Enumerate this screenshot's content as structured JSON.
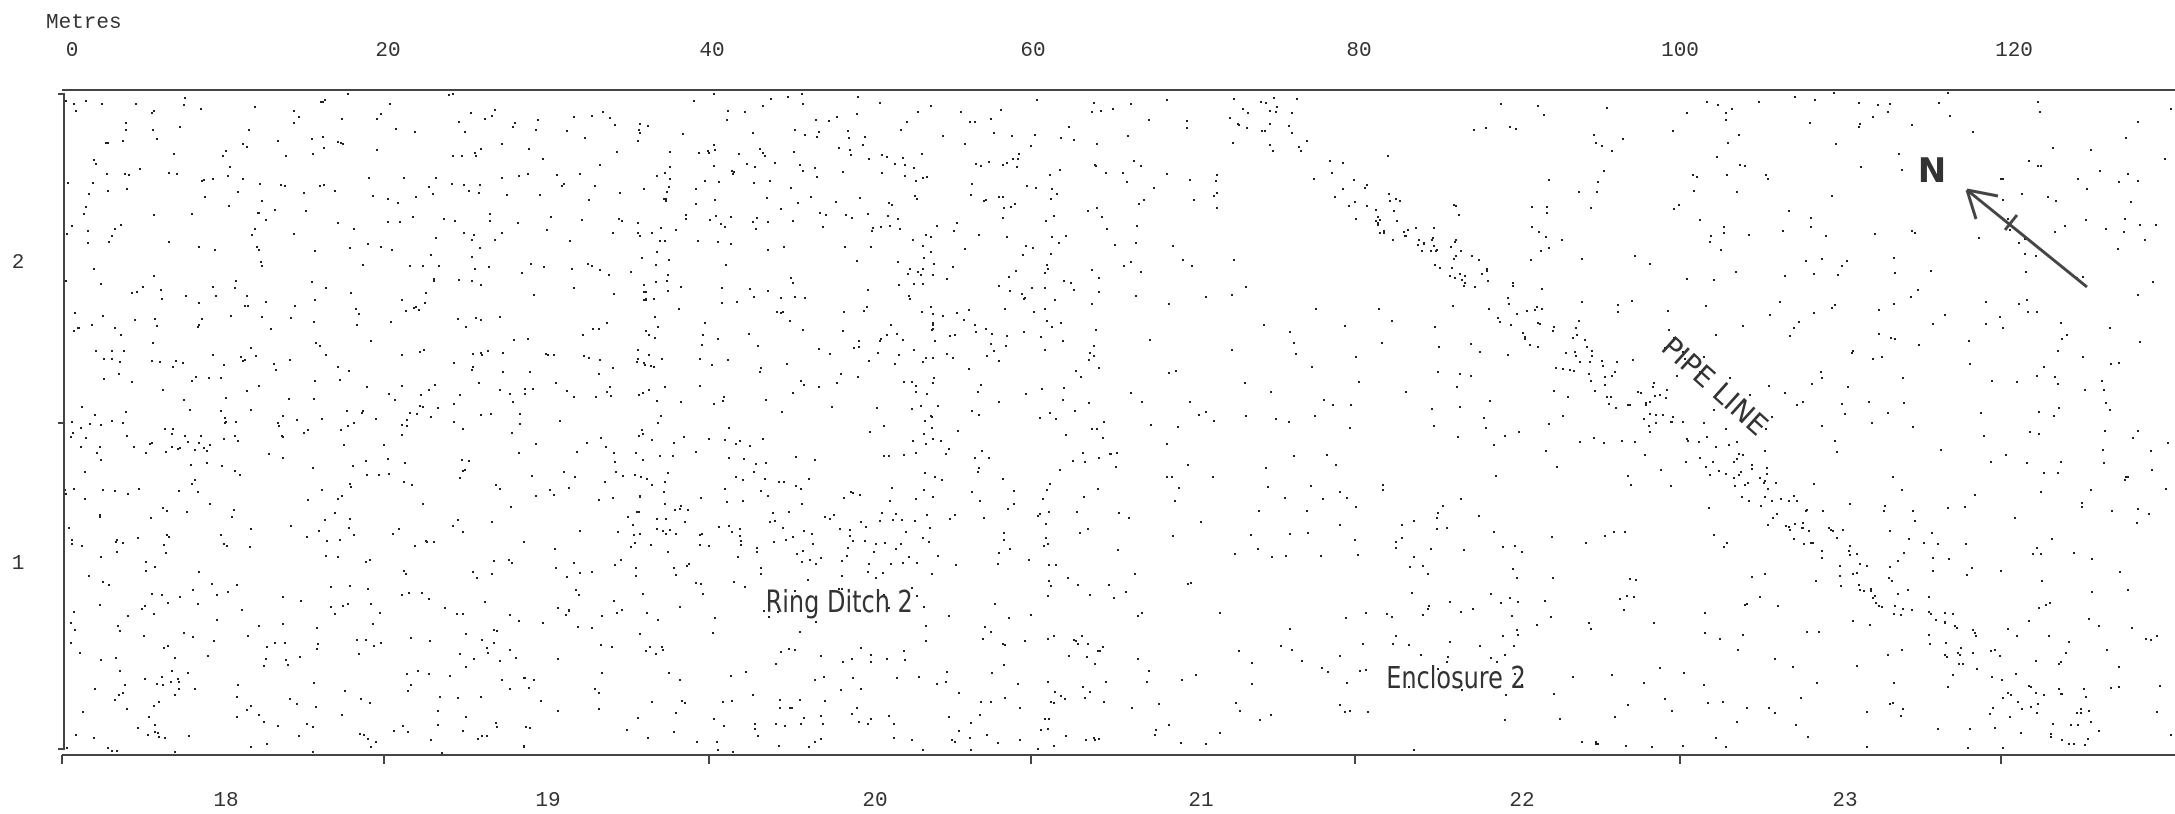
{
  "scale": {
    "label": "Metres",
    "ticks": [
      "0",
      "20",
      "40",
      "60",
      "80",
      "100",
      "120"
    ]
  },
  "rows": [
    "2",
    "1"
  ],
  "grid_squares": [
    "18",
    "19",
    "20",
    "21",
    "22",
    "23"
  ],
  "annotations": {
    "ring_ditch": "Ring Ditch 2",
    "enclosure": "Enclosure 2",
    "pipe_line": "PIPE LINE",
    "north": "N"
  }
}
